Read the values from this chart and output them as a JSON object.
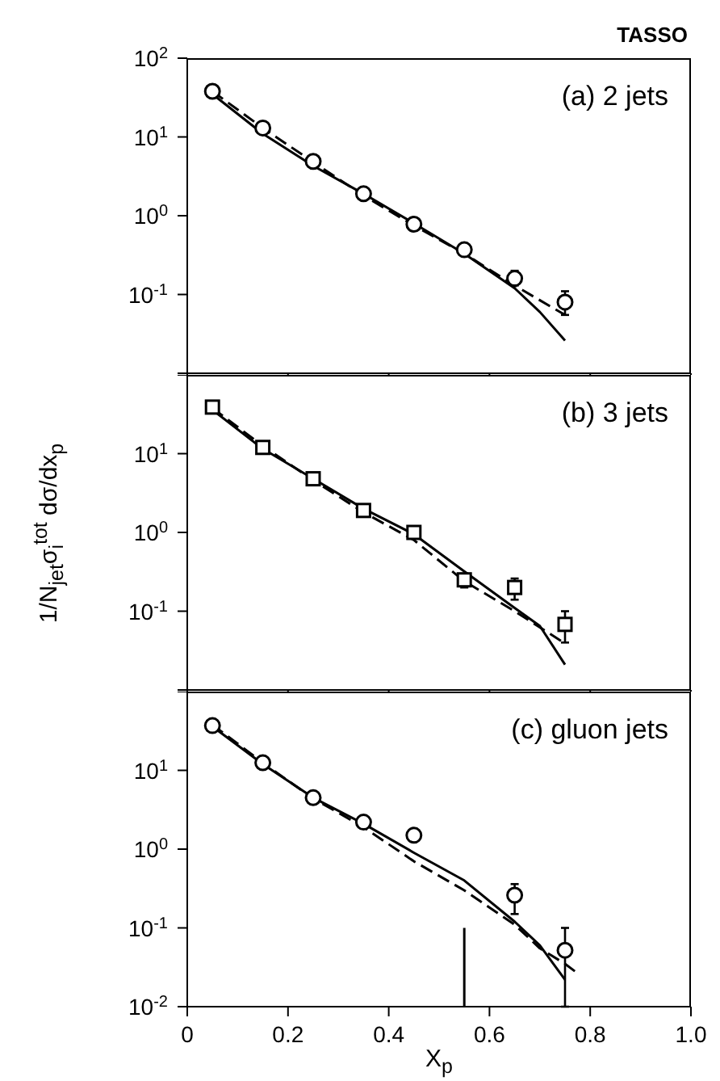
{
  "chart_data": [
    {
      "type": "scatter",
      "title": "TASSO",
      "annotations": [
        "(a) 2 jets"
      ],
      "log": "y",
      "grid": false,
      "legend": false,
      "tick_labels": "y",
      "xlim": [
        0,
        1
      ],
      "xticks": [
        0,
        0.2,
        0.4,
        0.6,
        0.8,
        1
      ],
      "ylim": [
        0.01,
        100
      ],
      "yticks": [
        {
          "value": 0.01,
          "label": null
        },
        {
          "value": 0.1,
          "label": "10$^{-1}$"
        },
        {
          "value": 1,
          "label": "10$^{0}$"
        },
        {
          "value": 10,
          "label": "10$^{1}$"
        },
        {
          "value": 100,
          "label": "10$^{2}$"
        }
      ],
      "x": [
        0.05,
        0.15,
        0.25,
        0.35,
        0.45,
        0.55,
        0.65,
        0.75
      ],
      "series": [
        {
          "type": "scatter",
          "color": "#000000",
          "marker": "circle",
          "values": [
            38,
            13,
            4.9,
            1.9,
            0.78,
            0.37,
            0.16,
            0.08
          ],
          "errors": [
            null,
            null,
            null,
            null,
            null,
            null,
            [
              0.13,
              0.2
            ],
            [
              0.055,
              0.11
            ]
          ]
        },
        {
          "type": "line",
          "color": "#000000",
          "line_style": "solid",
          "x": [
            0.05,
            0.15,
            0.25,
            0.35,
            0.45,
            0.55,
            0.65,
            0.7,
            0.75
          ],
          "values": [
            35,
            11,
            4.3,
            1.9,
            0.8,
            0.33,
            0.12,
            0.06,
            0.026
          ]
        },
        {
          "type": "line",
          "color": "#000000",
          "line_style": "dashed",
          "x": [
            0.05,
            0.15,
            0.25,
            0.35,
            0.45,
            0.55,
            0.65,
            0.75
          ],
          "values": [
            38,
            13,
            4.8,
            1.8,
            0.75,
            0.33,
            0.13,
            0.055
          ]
        }
      ]
    },
    {
      "type": "scatter",
      "annotations": [
        "(b) 3 jets"
      ],
      "ylabel": "1/N$_{jet}$σ$_{i}$$^{tot}$ dσ/dx$_{p}$",
      "log": "y",
      "grid": false,
      "legend": false,
      "tick_labels": "y",
      "xlim": [
        0,
        1
      ],
      "xticks": [
        0,
        0.2,
        0.4,
        0.6,
        0.8,
        1
      ],
      "ylim": [
        0.01,
        100
      ],
      "yticks": [
        {
          "value": 0.01,
          "label": null
        },
        {
          "value": 0.1,
          "label": "10$^{-1}$"
        },
        {
          "value": 1,
          "label": "10$^{0}$"
        },
        {
          "value": 10,
          "label": "10$^{1}$"
        },
        {
          "value": 100,
          "label": null
        }
      ],
      "x": [
        0.05,
        0.15,
        0.25,
        0.35,
        0.45,
        0.55,
        0.65,
        0.75
      ],
      "series": [
        {
          "type": "scatter",
          "color": "#000000",
          "marker": "square",
          "values": [
            39,
            12,
            4.8,
            1.9,
            1.0,
            0.25,
            0.2,
            0.068
          ],
          "errors": [
            null,
            null,
            null,
            null,
            null,
            [
              0.2,
              0.3
            ],
            [
              0.14,
              0.26
            ],
            [
              0.04,
              0.1
            ]
          ]
        },
        {
          "type": "line",
          "color": "#000000",
          "line_style": "solid",
          "x": [
            0.05,
            0.15,
            0.25,
            0.35,
            0.45,
            0.55,
            0.65,
            0.7,
            0.75
          ],
          "values": [
            36,
            11.5,
            4.8,
            2.0,
            0.95,
            0.32,
            0.11,
            0.065,
            0.021
          ]
        },
        {
          "type": "line",
          "color": "#000000",
          "line_style": "dashed",
          "x": [
            0.05,
            0.15,
            0.25,
            0.35,
            0.45,
            0.55,
            0.65,
            0.75
          ],
          "values": [
            38,
            12.5,
            4.6,
            1.8,
            0.8,
            0.24,
            0.1,
            0.039
          ]
        }
      ]
    },
    {
      "type": "scatter",
      "annotations": [
        "(c) gluon jets"
      ],
      "xlabel": "X$_{p}$",
      "log": "y",
      "grid": false,
      "legend": false,
      "xlim": [
        0,
        1
      ],
      "xticks": [
        0,
        0.2,
        0.4,
        0.6,
        0.8,
        {
          "value": 1,
          "label": "1.0"
        }
      ],
      "ylim": [
        0.01,
        100
      ],
      "yticks": [
        {
          "value": 0.01,
          "label": "10$^{-2}$"
        },
        {
          "value": 0.1,
          "label": "10$^{-1}$"
        },
        {
          "value": 1,
          "label": "10$^{0}$"
        },
        {
          "value": 10,
          "label": "10$^{1}$"
        },
        {
          "value": 100,
          "label": null
        }
      ],
      "x": [
        0.05,
        0.15,
        0.25,
        0.35,
        0.45,
        0.55,
        0.65,
        0.75
      ],
      "series": [
        {
          "type": "scatter",
          "color": "#000000",
          "marker": "circle",
          "values": [
            37,
            12.5,
            4.5,
            2.2,
            1.5,
            null,
            0.26,
            0.052
          ],
          "errors": [
            null,
            null,
            null,
            null,
            [
              1.3,
              1.8
            ],
            null,
            [
              0.15,
              0.36
            ],
            [
              0.01,
              0.1
            ]
          ]
        },
        {
          "type": "line",
          "color": "#000000",
          "line_style": "solid",
          "x": [
            0.55,
            0.55
          ],
          "values": [
            0.01,
            0.1
          ]
        },
        {
          "type": "line",
          "color": "#000000",
          "line_style": "solid",
          "x": [
            0.05,
            0.15,
            0.25,
            0.35,
            0.45,
            0.55,
            0.65,
            0.7,
            0.75
          ],
          "values": [
            36,
            12,
            4.5,
            2.1,
            0.9,
            0.4,
            0.12,
            0.06,
            0.022
          ]
        },
        {
          "type": "line",
          "color": "#000000",
          "line_style": "dashed",
          "x": [
            0.05,
            0.15,
            0.25,
            0.35,
            0.45,
            0.55,
            0.65,
            0.7,
            0.75,
            0.77
          ],
          "values": [
            38,
            12.5,
            4.4,
            1.9,
            0.7,
            0.3,
            0.11,
            0.055,
            0.035,
            0.028
          ]
        }
      ]
    }
  ]
}
